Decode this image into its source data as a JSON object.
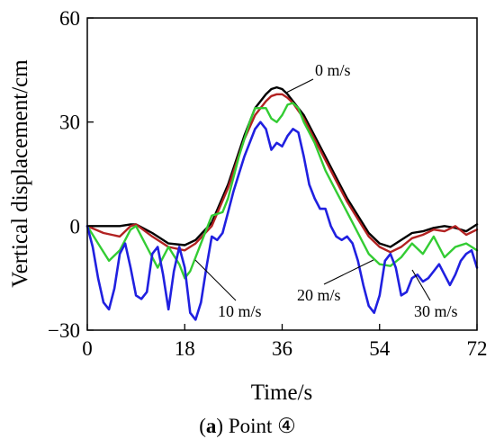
{
  "chart_data": {
    "type": "line",
    "xlabel": "Time/s",
    "ylabel": "Vertical displacement/cm",
    "xlim": [
      0,
      72
    ],
    "ylim": [
      -30,
      60
    ],
    "xticks": [
      "0",
      "18",
      "36",
      "54",
      "72"
    ],
    "yticks": [
      "−30",
      "0",
      "30",
      "60"
    ],
    "grid": false,
    "caption": {
      "label": "a",
      "text": " Point ④"
    },
    "series": [
      {
        "name": "0 m/s",
        "color": "#000000",
        "x": [
          0,
          3,
          6,
          8,
          9,
          12,
          15,
          18,
          20,
          23,
          26,
          29,
          31,
          33,
          34,
          35,
          36,
          37,
          38,
          40,
          42,
          44,
          46,
          48,
          50,
          52,
          54,
          56,
          58,
          60,
          62,
          64,
          66,
          68,
          70,
          72
        ],
        "y": [
          0,
          0,
          0,
          0.5,
          0.5,
          -2,
          -5,
          -5.5,
          -4,
          1,
          12,
          26,
          34,
          38,
          39.5,
          40,
          39.5,
          38,
          36,
          32,
          26,
          20,
          14,
          8,
          3,
          -2,
          -5,
          -6,
          -4,
          -2,
          -1.5,
          -0.5,
          0,
          -0.5,
          -1.5,
          0.5
        ]
      },
      {
        "name": "10 m/s",
        "color": "#b22222",
        "x": [
          0,
          3,
          6,
          8,
          9,
          12,
          15,
          18,
          20,
          23,
          26,
          29,
          31,
          33,
          34,
          35,
          36,
          37,
          38,
          40,
          42,
          44,
          46,
          48,
          50,
          52,
          54,
          56,
          58,
          60,
          62,
          64,
          66,
          68,
          70,
          72
        ],
        "y": [
          0,
          -2,
          -3,
          0,
          0.5,
          -3,
          -6,
          -7,
          -5,
          0,
          11,
          25,
          32,
          36,
          37.5,
          38,
          38,
          37,
          35.5,
          31,
          25,
          19,
          13,
          7,
          2,
          -3,
          -6,
          -7.5,
          -6,
          -3.5,
          -2.5,
          -1,
          -1.5,
          0,
          -2.5,
          -1
        ]
      },
      {
        "name": "20 m/s",
        "color": "#33cc33",
        "x": [
          0,
          2,
          4,
          6,
          8,
          9,
          11,
          13,
          15,
          17,
          18,
          19,
          21,
          23,
          25,
          26,
          28,
          30,
          31,
          33,
          34,
          35,
          36,
          37,
          38,
          39,
          40,
          42,
          44,
          46,
          48,
          50,
          52,
          54,
          56,
          58,
          60,
          62,
          64,
          66,
          68,
          70,
          72
        ],
        "y": [
          0,
          -5,
          -10,
          -7,
          -1,
          0,
          -6,
          -12,
          -6,
          -11,
          -15,
          -13,
          -5,
          3,
          4,
          8,
          20,
          30,
          34,
          34,
          31,
          30,
          32,
          35,
          35.5,
          34,
          30,
          24,
          16,
          10,
          4,
          -2,
          -8,
          -11,
          -11.5,
          -9,
          -5,
          -8,
          -3,
          -9,
          -6,
          -5,
          -7
        ]
      },
      {
        "name": "30 m/s",
        "color": "#2020e0",
        "x": [
          0,
          1,
          2,
          3,
          4,
          5,
          6,
          7,
          8,
          9,
          10,
          11,
          12,
          13,
          14,
          15,
          16,
          17,
          18,
          19,
          20,
          21,
          22,
          23,
          24,
          25,
          26,
          27,
          28,
          29,
          30,
          31,
          32,
          33,
          34,
          35,
          36,
          37,
          38,
          39,
          40,
          41,
          42,
          43,
          44,
          45,
          46,
          47,
          48,
          49,
          50,
          51,
          52,
          53,
          54,
          55,
          56,
          57,
          58,
          59,
          60,
          61,
          62,
          63,
          64,
          65,
          66,
          67,
          68,
          69,
          70,
          71,
          72
        ],
        "y": [
          0,
          -6,
          -15,
          -22,
          -24,
          -18,
          -8,
          -5,
          -12,
          -20,
          -21,
          -19,
          -8,
          -6,
          -14,
          -24,
          -13,
          -6,
          -12,
          -25,
          -27,
          -22,
          -12,
          -3,
          -4,
          -2,
          4,
          10,
          15,
          20,
          24,
          28,
          30,
          28,
          22,
          24,
          23,
          26,
          28,
          27,
          20,
          12,
          8,
          5,
          5,
          0,
          -3,
          -4,
          -3,
          -5,
          -10,
          -17,
          -23,
          -25,
          -20,
          -10,
          -8,
          -12,
          -20,
          -19,
          -15,
          -14,
          -16,
          -15,
          -13,
          -11,
          -14,
          -17,
          -14,
          -10,
          -8,
          -7,
          -12
        ]
      }
    ],
    "annotations": [
      {
        "text": "0 m/s",
        "series": "0 m/s"
      },
      {
        "text": "10 m/s",
        "series": "10 m/s"
      },
      {
        "text": "20 m/s",
        "series": "20 m/s"
      },
      {
        "text": "30 m/s",
        "series": "30 m/s"
      }
    ]
  }
}
